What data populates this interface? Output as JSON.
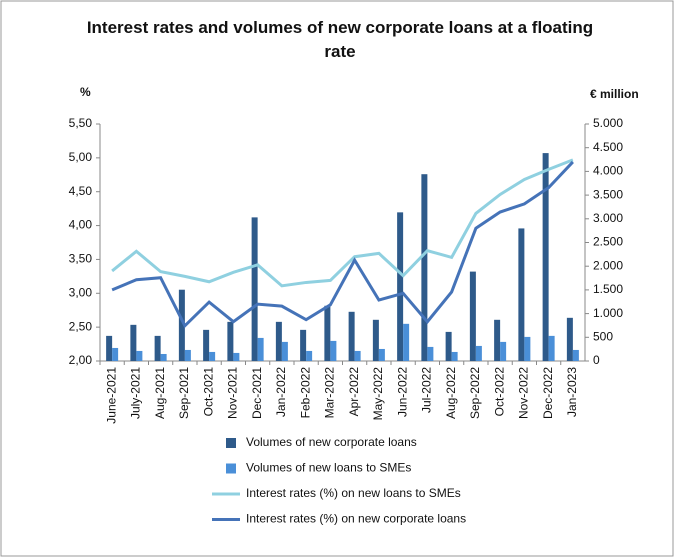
{
  "chart_data": {
    "type": "bar",
    "title": "Interest rates and volumes of new corporate loans at a floating rate",
    "y_label": "%",
    "y2_label": "€ million",
    "categories": [
      "June-2021",
      "July-2021",
      "Aug-2021",
      "Sep-2021",
      "Oct-2021",
      "Nov-2021",
      "Dec-2021",
      "Jan-2022",
      "Feb-2022",
      "Mar-2022",
      "Apr-2022",
      "May-2022",
      "Jun-2022",
      "Jul-2022",
      "Aug-2022",
      "Sep-2022",
      "Oct-2022",
      "Nov-2022",
      "Dec-2022",
      "Jan-2023"
    ],
    "series": [
      {
        "name": "Volumes of new corporate loans",
        "type": "bar",
        "axis": "y2",
        "color": "#2e5a8a",
        "values": [
          530,
          763,
          530,
          1504,
          657,
          826,
          3030,
          826,
          657,
          1165,
          1038,
          869,
          3136,
          3941,
          614,
          1886,
          869,
          2797,
          4386,
          911
        ]
      },
      {
        "name": "Volumes of new loans to SMEs",
        "type": "bar",
        "axis": "y2",
        "color": "#4a8fd8",
        "values": [
          275,
          212,
          148,
          233,
          191,
          170,
          487,
          403,
          212,
          424,
          212,
          254,
          784,
          297,
          191,
          318,
          403,
          508,
          530,
          233
        ]
      },
      {
        "name": "Interest rates (%) on new loans to SMEs",
        "type": "line",
        "color": "#8fd0e0",
        "values": [
          3.33,
          3.62,
          3.32,
          3.25,
          3.17,
          3.31,
          3.42,
          3.11,
          3.16,
          3.19,
          3.54,
          3.59,
          3.26,
          3.63,
          3.53,
          4.18,
          4.46,
          4.68,
          4.83,
          4.97
        ]
      },
      {
        "name": "Interest rates (%) on new corporate loans",
        "type": "line",
        "color": "#4573b8",
        "values": [
          3.05,
          3.2,
          3.23,
          2.52,
          2.87,
          2.58,
          2.84,
          2.81,
          2.61,
          2.83,
          3.49,
          2.9,
          3.0,
          2.58,
          3.02,
          3.96,
          4.2,
          4.32,
          4.56,
          4.94
        ]
      }
    ],
    "ylim": [
      2,
      5.5
    ],
    "yticks": [
      {
        "value": 2,
        "label": "2,00"
      },
      {
        "value": 2.5,
        "label": "2,50"
      },
      {
        "value": 3,
        "label": "3,00"
      },
      {
        "value": 3.5,
        "label": "3,50"
      },
      {
        "value": 4,
        "label": "4,00"
      },
      {
        "value": 4.5,
        "label": "4,50"
      },
      {
        "value": 5,
        "label": "5,00"
      },
      {
        "value": 5.5,
        "label": "5,50"
      }
    ],
    "y2lim": [
      0,
      5000
    ],
    "y2ticks": [
      0,
      500,
      {
        "value": 1000,
        "label": "1.000"
      },
      {
        "value": 1500,
        "label": "1.500"
      },
      {
        "value": 2000,
        "label": "2.000"
      },
      {
        "value": 2500,
        "label": "2.500"
      },
      {
        "value": 3000,
        "label": "3.000"
      },
      {
        "value": 3500,
        "label": "3.500"
      },
      {
        "value": 4000,
        "label": "4.000"
      },
      {
        "value": 4500,
        "label": "4.500"
      },
      {
        "value": 5000,
        "label": "5.000"
      }
    ],
    "grid": false,
    "legend": "bottom"
  }
}
